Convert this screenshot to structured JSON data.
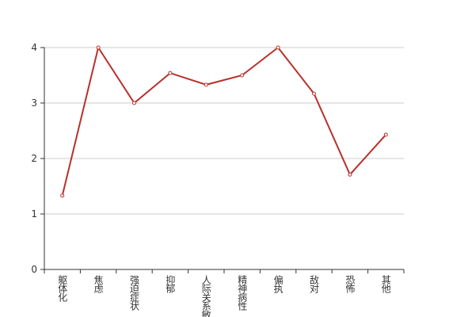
{
  "chart_data": {
    "type": "line",
    "categories": [
      "躯体化",
      "焦虑",
      "强迫症状",
      "抑郁",
      "人际关系敏感",
      "精神病性",
      "偏执",
      "敌对",
      "恐怖",
      "其他"
    ],
    "values": [
      1.33,
      4,
      3,
      3.54,
      3.33,
      3.5,
      4,
      3.17,
      1.71,
      2.43
    ],
    "color": "#b8302c",
    "ylim": [
      0,
      4
    ],
    "yticks": [
      0,
      1,
      2,
      3,
      4
    ],
    "grid": true
  }
}
